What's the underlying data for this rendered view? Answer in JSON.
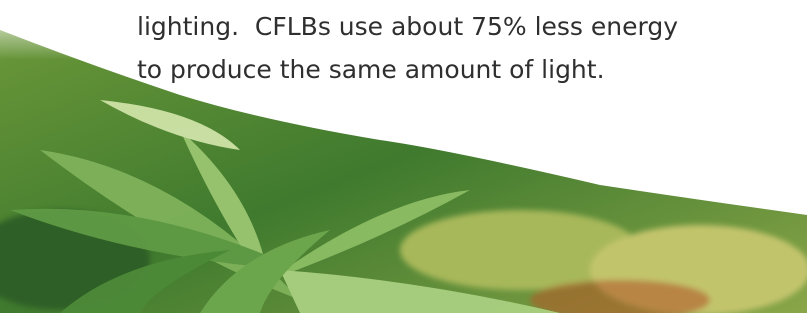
{
  "text": {
    "lines": [
      "lighting.  CFLBs use about 75% less energy",
      "to produce the same amount of light."
    ]
  }
}
